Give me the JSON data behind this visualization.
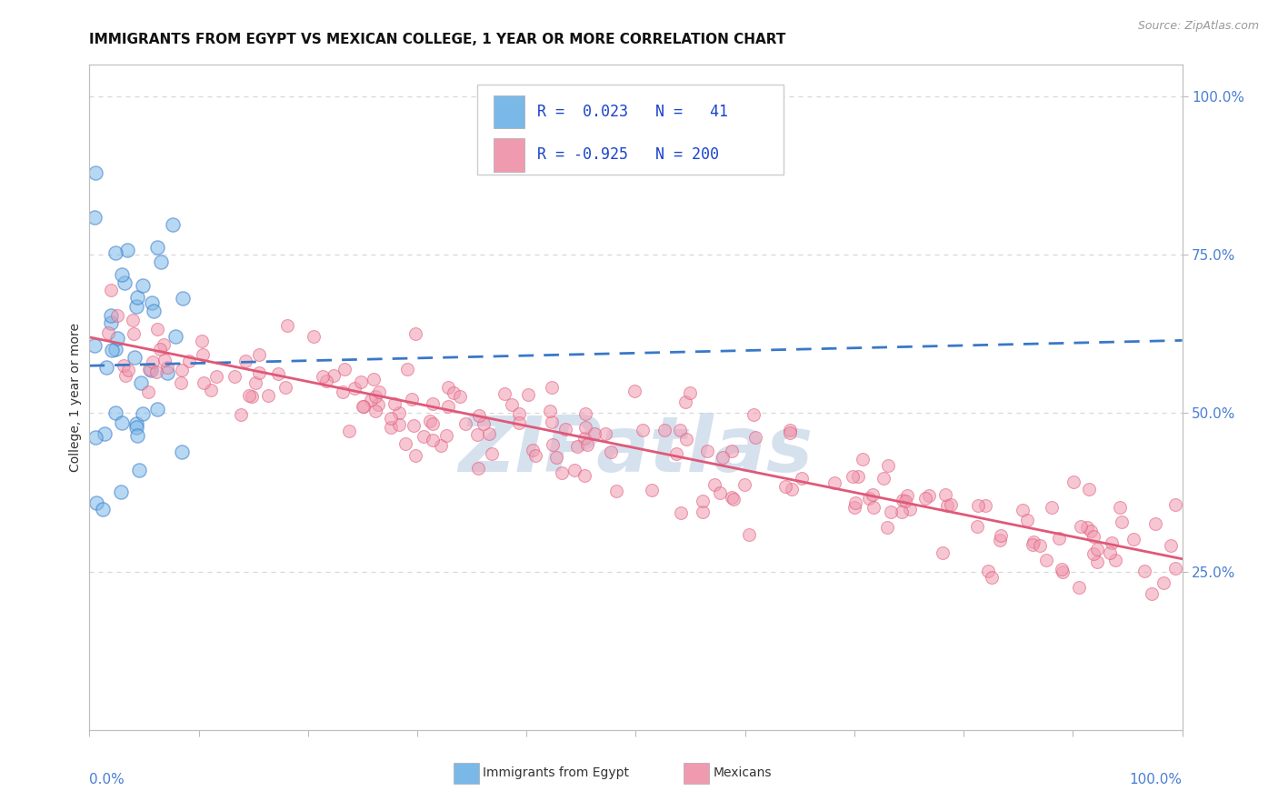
{
  "title": "IMMIGRANTS FROM EGYPT VS MEXICAN COLLEGE, 1 YEAR OR MORE CORRELATION CHART",
  "source_text": "Source: ZipAtlas.com",
  "ylabel": "College, 1 year or more",
  "right_ytick_labels": [
    "25.0%",
    "50.0%",
    "75.0%",
    "100.0%"
  ],
  "right_ytick_positions": [
    0.25,
    0.5,
    0.75,
    1.0
  ],
  "egypt_scatter_color": "#7ab8e8",
  "mexican_scatter_color": "#f09ab0",
  "egypt_trend_color": "#3878c8",
  "mexican_trend_color": "#e05878",
  "background_color": "#ffffff",
  "grid_color": "#d8d8d8",
  "watermark_text": "ZIPatlas",
  "watermark_color": "#c5d5e8",
  "xlim": [
    0.0,
    1.0
  ],
  "ylim": [
    0.0,
    1.05
  ],
  "egypt_R": 0.023,
  "egypt_N": 41,
  "mexican_R": -0.925,
  "mexican_N": 200,
  "egypt_trend_start_y": 0.575,
  "egypt_trend_end_y": 0.615,
  "mexican_trend_start_y": 0.62,
  "mexican_trend_end_y": 0.27,
  "legend_color": "#1a44cc",
  "legend_label_egypt": "Immigrants from Egypt",
  "legend_label_mex": "Mexicans",
  "title_fontsize": 11,
  "axis_tick_color": "#4a7fd4"
}
